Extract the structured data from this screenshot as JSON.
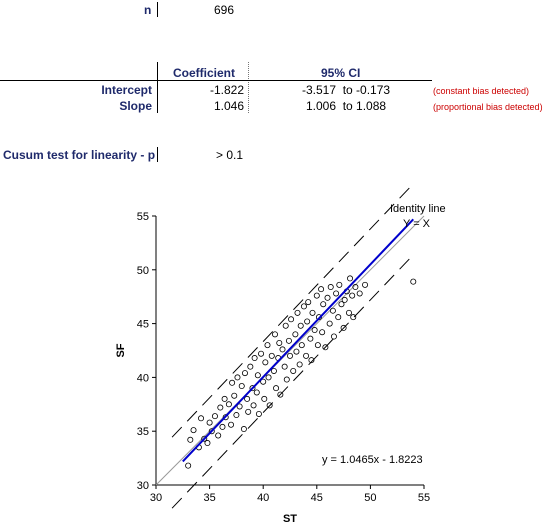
{
  "stats": {
    "n_label": "n",
    "n_value": "696",
    "header_coefficient": "Coefficient",
    "header_ci": "95% CI",
    "intercept_label": "Intercept",
    "intercept_value": "-1.822",
    "intercept_ci": "-3.517  to -0.173",
    "intercept_note": "(constant bias detected)",
    "slope_label": "Slope",
    "slope_value": "1.046",
    "slope_ci": "1.006  to 1.088",
    "slope_note": "(proportional bias detected)",
    "cusum_label": "Cusum test for linearity - p",
    "cusum_value": "> 0.1",
    "note_color": "#cc0000",
    "label_color": "#1f2a6b"
  },
  "chart_data": {
    "type": "scatter",
    "xlabel": "ST",
    "ylabel": "SF",
    "xlim": [
      30,
      55
    ],
    "ylim": [
      30,
      55
    ],
    "xticks": [
      "30",
      "35",
      "40",
      "45",
      "50",
      "55"
    ],
    "yticks": [
      "30",
      "35",
      "40",
      "45",
      "50",
      "55"
    ],
    "identity_label": "Identity line",
    "identity_eq": "Y = X",
    "regression_eq": "y = 1.0465x - 1.8223",
    "regression": {
      "slope": 1.0465,
      "intercept": -1.8223,
      "x_range": [
        32.5,
        54.0
      ],
      "color": "#0000cc"
    },
    "limit_lines": {
      "offset": 3.3,
      "x_range": [
        31.5,
        54.0
      ]
    },
    "n_points": 696,
    "grid": false,
    "points": [
      [
        33.0,
        31.8
      ],
      [
        33.2,
        34.2
      ],
      [
        33.5,
        35.1
      ],
      [
        34.0,
        33.5
      ],
      [
        34.2,
        36.2
      ],
      [
        34.5,
        34.3
      ],
      [
        34.8,
        33.9
      ],
      [
        35.0,
        35.8
      ],
      [
        35.2,
        35.0
      ],
      [
        35.5,
        36.4
      ],
      [
        35.8,
        34.6
      ],
      [
        36.0,
        37.2
      ],
      [
        36.2,
        35.4
      ],
      [
        36.4,
        38.0
      ],
      [
        36.5,
        36.3
      ],
      [
        36.8,
        37.5
      ],
      [
        37.0,
        35.6
      ],
      [
        37.1,
        39.5
      ],
      [
        37.3,
        38.3
      ],
      [
        37.5,
        36.5
      ],
      [
        37.6,
        40.0
      ],
      [
        37.8,
        37.3
      ],
      [
        38.0,
        39.2
      ],
      [
        38.2,
        35.2
      ],
      [
        38.3,
        40.4
      ],
      [
        38.5,
        38.0
      ],
      [
        38.6,
        36.8
      ],
      [
        38.8,
        41.0
      ],
      [
        39.0,
        39.0
      ],
      [
        39.1,
        37.4
      ],
      [
        39.2,
        41.8
      ],
      [
        39.4,
        38.6
      ],
      [
        39.5,
        40.2
      ],
      [
        39.6,
        36.6
      ],
      [
        39.8,
        42.2
      ],
      [
        40.0,
        39.6
      ],
      [
        40.1,
        38.0
      ],
      [
        40.2,
        41.4
      ],
      [
        40.4,
        43.0
      ],
      [
        40.5,
        40.0
      ],
      [
        40.6,
        37.4
      ],
      [
        40.8,
        42.0
      ],
      [
        41.0,
        40.6
      ],
      [
        41.1,
        44.0
      ],
      [
        41.2,
        39.0
      ],
      [
        41.4,
        41.8
      ],
      [
        41.5,
        43.2
      ],
      [
        41.6,
        38.4
      ],
      [
        41.8,
        42.6
      ],
      [
        42.0,
        41.0
      ],
      [
        42.1,
        44.8
      ],
      [
        42.2,
        39.8
      ],
      [
        42.4,
        43.4
      ],
      [
        42.5,
        42.0
      ],
      [
        42.6,
        45.4
      ],
      [
        42.8,
        40.6
      ],
      [
        43.0,
        44.0
      ],
      [
        43.1,
        42.4
      ],
      [
        43.2,
        46.0
      ],
      [
        43.4,
        41.2
      ],
      [
        43.5,
        44.8
      ],
      [
        43.6,
        43.0
      ],
      [
        43.8,
        46.6
      ],
      [
        44.0,
        42.0
      ],
      [
        44.1,
        45.2
      ],
      [
        44.2,
        47.0
      ],
      [
        44.4,
        43.6
      ],
      [
        44.5,
        41.6
      ],
      [
        44.6,
        46.0
      ],
      [
        44.8,
        44.4
      ],
      [
        45.0,
        47.6
      ],
      [
        45.1,
        43.0
      ],
      [
        45.2,
        45.6
      ],
      [
        45.4,
        48.2
      ],
      [
        45.5,
        44.2
      ],
      [
        45.6,
        46.8
      ],
      [
        45.8,
        42.8
      ],
      [
        46.0,
        47.4
      ],
      [
        46.2,
        45.0
      ],
      [
        46.3,
        48.4
      ],
      [
        46.5,
        46.2
      ],
      [
        46.6,
        43.8
      ],
      [
        46.8,
        47.8
      ],
      [
        47.0,
        45.6
      ],
      [
        47.1,
        48.6
      ],
      [
        47.3,
        46.8
      ],
      [
        47.5,
        44.6
      ],
      [
        47.6,
        47.2
      ],
      [
        47.8,
        48.0
      ],
      [
        48.0,
        46.0
      ],
      [
        48.1,
        49.2
      ],
      [
        48.3,
        47.6
      ],
      [
        48.4,
        45.6
      ],
      [
        48.6,
        48.4
      ],
      [
        49.0,
        47.8
      ],
      [
        49.5,
        48.6
      ],
      [
        54.0,
        48.9
      ]
    ]
  }
}
